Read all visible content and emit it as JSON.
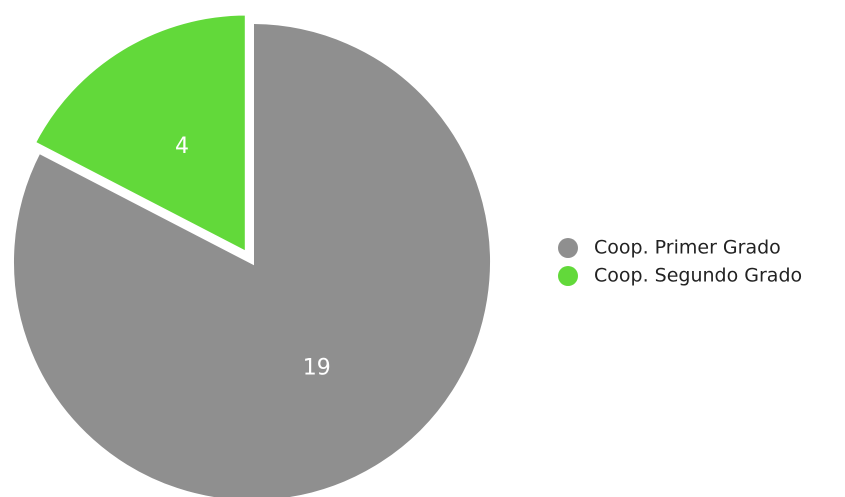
{
  "chart_data": {
    "type": "pie",
    "categories": [
      "Coop. Primer Grado",
      "Coop. Segundo Grado"
    ],
    "values": [
      19,
      4
    ],
    "colors": [
      "#8f8f8f",
      "#62d93a"
    ],
    "data_labels": [
      "19",
      "4"
    ],
    "legend": {
      "position": "right",
      "items": [
        "Coop. Primer Grado",
        "Coop. Segundo Grado"
      ]
    },
    "start_angle_deg": 0,
    "direction": "clockwise",
    "exploded_slice": "Coop. Segundo Grado"
  }
}
